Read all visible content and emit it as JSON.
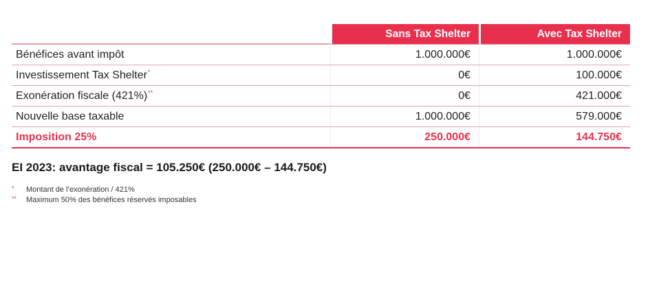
{
  "table": {
    "headers": [
      "",
      "Sans Tax Shelter",
      "Avec Tax Shelter"
    ],
    "rows": [
      {
        "label": "Bénéfices avant impôt",
        "mark": "",
        "sans": "1.000.000€",
        "avec": "1.000.000€"
      },
      {
        "label": "Investissement Tax Shelter",
        "mark": "*",
        "sans": "0€",
        "avec": "100.000€"
      },
      {
        "label": "Exonération fiscale (421%)",
        "mark": "**",
        "sans": "0€",
        "avec": "421.000€"
      },
      {
        "label": "Nouvelle base taxable",
        "mark": "",
        "sans": "1.000.000€",
        "avec": "579.000€"
      }
    ],
    "total": {
      "label": "Imposition 25%",
      "sans": "250.000€",
      "avec": "144.750€"
    }
  },
  "summary": "EI 2023: avantage fiscal = 105.250€ (250.000€ – 144.750€)",
  "notes": [
    {
      "symbol": "*",
      "text": "Montant de l’exonération / 421%"
    },
    {
      "symbol": "**",
      "text": "Maximum 50% des bénéfices réservés imposables"
    }
  ],
  "colors": {
    "accent": "#e8304e",
    "divider": "#e6a0ab"
  }
}
